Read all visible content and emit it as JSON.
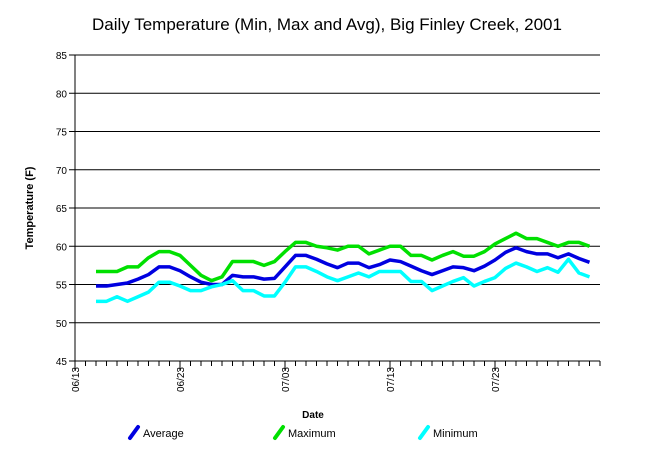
{
  "chart_data": {
    "type": "line",
    "title": "Daily Temperature (Min, Max and Avg), Big Finley Creek, 2001",
    "x_label": "Date",
    "y_label": "Temperature (F)",
    "categories": [
      "06/13",
      null,
      null,
      null,
      null,
      null,
      null,
      null,
      null,
      null,
      "06/23",
      null,
      null,
      null,
      null,
      null,
      null,
      null,
      null,
      null,
      "07/03",
      null,
      null,
      null,
      null,
      null,
      null,
      null,
      null,
      null,
      "07/13",
      null,
      null,
      null,
      null,
      null,
      null,
      null,
      null,
      null,
      "07/23",
      null,
      null,
      null,
      null,
      null,
      null,
      null,
      null,
      null,
      null
    ],
    "ylim": [
      45,
      85
    ],
    "yticks": [
      45,
      50,
      55,
      60,
      65,
      70,
      75,
      80,
      85
    ],
    "grid": true,
    "legend": "bottom",
    "series": [
      {
        "name": "Average",
        "color": "#0000e0",
        "values": [
          null,
          null,
          54.8,
          54.8,
          55,
          55.2,
          55.7,
          56.3,
          57.3,
          57.3,
          56.8,
          56,
          55.3,
          55,
          55,
          56.2,
          56,
          56,
          55.7,
          55.8,
          57.3,
          58.8,
          58.8,
          58.3,
          57.7,
          57.2,
          57.8,
          57.8,
          57.2,
          57.6,
          58.2,
          58,
          57.4,
          56.8,
          56.3,
          56.8,
          57.3,
          57.2,
          56.8,
          57.4,
          58.2,
          59.2,
          59.8,
          59.3,
          59,
          59,
          58.5,
          59,
          58.4,
          57.9,
          null
        ]
      },
      {
        "name": "Maximum",
        "color": "#00e000",
        "values": [
          null,
          null,
          56.7,
          56.7,
          56.7,
          57.3,
          57.3,
          58.5,
          59.3,
          59.3,
          58.8,
          57.5,
          56.2,
          55.5,
          56,
          58,
          58,
          58,
          57.5,
          58,
          59.3,
          60.5,
          60.5,
          60,
          59.8,
          59.5,
          60,
          60,
          59,
          59.5,
          60,
          60,
          58.8,
          58.8,
          58.2,
          58.8,
          59.3,
          58.7,
          58.7,
          59.3,
          60.3,
          61,
          61.7,
          61,
          61,
          60.5,
          60,
          60.5,
          60.5,
          60,
          null
        ]
      },
      {
        "name": "Minimum",
        "color": "#00ffff",
        "values": [
          null,
          null,
          52.8,
          52.8,
          53.4,
          52.8,
          53.4,
          54,
          55.3,
          55.3,
          54.8,
          54.2,
          54.2,
          54.7,
          55,
          55.5,
          54.2,
          54.2,
          53.5,
          53.5,
          55.3,
          57.3,
          57.3,
          56.7,
          56,
          55.5,
          56,
          56.5,
          56,
          56.7,
          56.7,
          56.7,
          55.4,
          55.4,
          54.2,
          54.8,
          55.4,
          55.9,
          54.8,
          55.4,
          55.9,
          57.1,
          57.8,
          57.3,
          56.7,
          57.2,
          56.6,
          58.3,
          56.5,
          56,
          null
        ]
      }
    ]
  }
}
